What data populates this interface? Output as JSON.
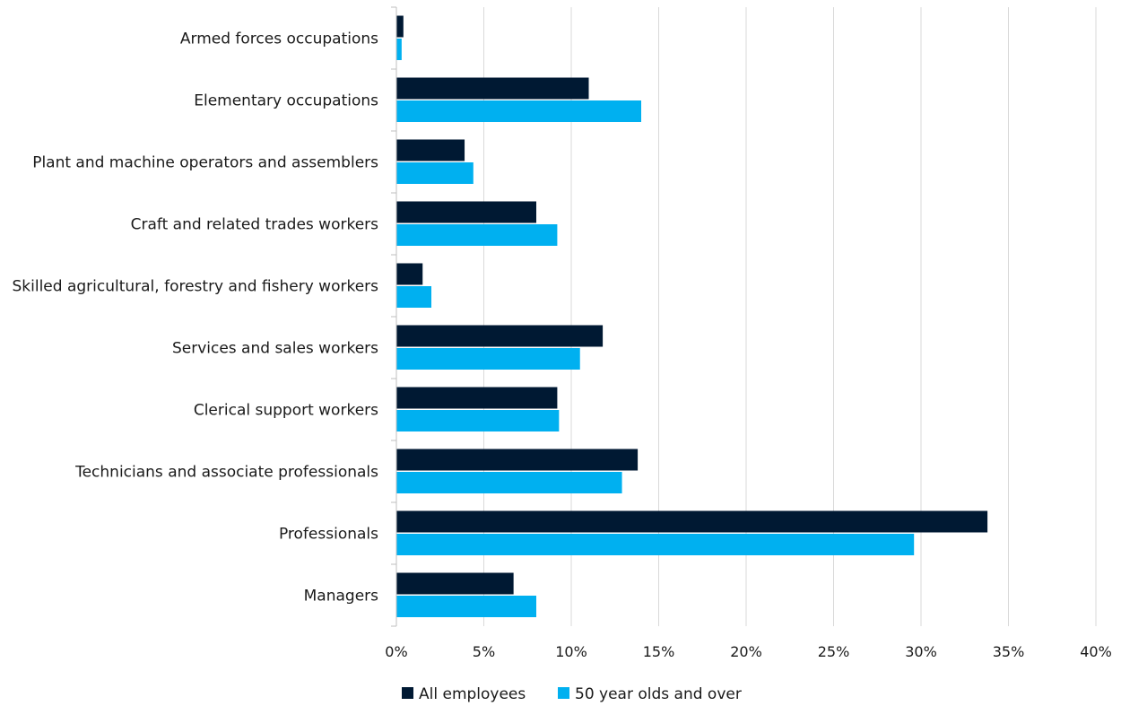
{
  "chart_data": {
    "type": "bar",
    "orientation": "horizontal",
    "title": "",
    "xlabel": "",
    "ylabel": "",
    "xlim": [
      0,
      40
    ],
    "x_ticks": [
      "0%",
      "5%",
      "10%",
      "15%",
      "20%",
      "25%",
      "30%",
      "35%",
      "40%"
    ],
    "grid": "vertical",
    "legend": "bottom",
    "categories": [
      "Armed forces occupations",
      "Elementary occupations",
      "Plant and machine operators and assemblers",
      "Craft and related trades workers",
      "Skilled agricultural, forestry and fishery workers",
      "Services and sales workers",
      "Clerical support workers",
      "Technicians and associate professionals",
      "Professionals",
      "Managers"
    ],
    "series": [
      {
        "name": "All employees",
        "color": "#001933",
        "values": [
          0.4,
          11.0,
          3.9,
          8.0,
          1.5,
          11.8,
          9.2,
          13.8,
          33.8,
          6.7
        ]
      },
      {
        "name": "50 year olds and over",
        "color": "#00b0f0",
        "values": [
          0.3,
          14.0,
          4.4,
          9.2,
          2.0,
          10.5,
          9.3,
          12.9,
          29.6,
          8.0
        ]
      }
    ]
  }
}
